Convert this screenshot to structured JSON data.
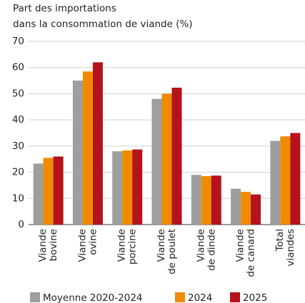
{
  "chart_data": {
    "type": "bar",
    "title": [
      "Part des importations",
      "dans la consommation de viande (%)"
    ],
    "categories": [
      [
        "Viande",
        "bovine"
      ],
      [
        "Viande",
        "ovine"
      ],
      [
        "Viande",
        "porcine"
      ],
      [
        "Viande",
        "de poulet"
      ],
      [
        "Viande",
        "de dinde"
      ],
      [
        "Viande",
        "de canard"
      ],
      [
        "Total",
        "viandes"
      ]
    ],
    "series": [
      {
        "name": "Moyenne 2020-2024",
        "color": "#9e9e9e",
        "values": [
          23.3,
          55,
          28,
          48,
          19,
          13.7,
          32
        ]
      },
      {
        "name": "2024",
        "color": "#f08a00",
        "values": [
          25.5,
          58.5,
          28.3,
          50,
          18.5,
          12.5,
          33.7
        ]
      },
      {
        "name": "2025",
        "color": "#b5121b",
        "values": [
          26,
          62,
          28.7,
          52.3,
          18.7,
          11.5,
          35
        ]
      }
    ],
    "ylim": [
      0,
      70
    ],
    "yticks": [
      0,
      10,
      20,
      30,
      40,
      50,
      60,
      70
    ],
    "grid": true
  }
}
